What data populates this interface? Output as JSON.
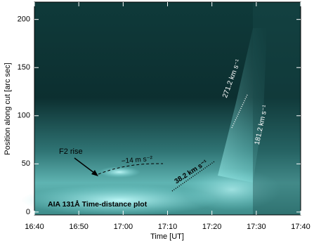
{
  "chart_data": {
    "type": "image",
    "xlabel": "Time [UT]",
    "ylabel": "Position along cut [arc sec]",
    "xlim": [
      "16:40",
      "17:40"
    ],
    "xticks": [
      "16:40",
      "16:50",
      "17:00",
      "17:10",
      "17:20",
      "17:30",
      "17:40"
    ],
    "ylim": [
      -3,
      218
    ],
    "yticks": [
      0,
      50,
      100,
      150,
      200
    ],
    "annotations": [
      "F2 rise",
      "−14 m s⁻²",
      "38.2 km s⁻¹",
      "271.2 km s⁻¹",
      "181.2 km s⁻¹",
      "AIA 131Å Time-distance plot"
    ]
  }
}
